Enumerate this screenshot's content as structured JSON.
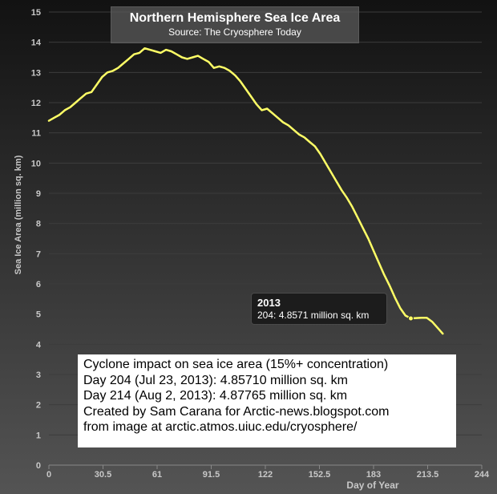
{
  "title": "Northern Hemisphere Sea Ice Area",
  "subtitle": "Source: The Cryosphere Today",
  "tooltip": {
    "series": "2013",
    "text": "204: 4.8571 million sq. km"
  },
  "annotation": {
    "lines": [
      "Cyclone impact on sea ice area (15%+ concentration)",
      "Day 204 (Jul 23, 2013): 4.85710 million sq. km",
      "Day 214 (Aug 2, 2013): 4.87765 million sq. km",
      "Created by Sam Carana for Arctic-news.blogspot.com",
      "from image at  arctic.atmos.uiuc.edu/cryosphere/"
    ]
  },
  "colors": {
    "background_top": "#121212",
    "background_bottom": "#545454",
    "grid": "#3c3c3c",
    "axis_text": "#c8c8c8",
    "line": "#ffff66"
  },
  "chart_data": {
    "type": "line",
    "xlabel": "Day of Year",
    "ylabel": "Sea Ice Area (million sq. km)",
    "xlim": [
      0,
      244
    ],
    "ylim": [
      0,
      15
    ],
    "xticks": [
      "0",
      "30.5",
      "61",
      "91.5",
      "122",
      "152.5",
      "183",
      "213.5",
      "244"
    ],
    "yticks": [
      "0",
      "1",
      "2",
      "3",
      "4",
      "5",
      "6",
      "7",
      "8",
      "9",
      "10",
      "11",
      "12",
      "13",
      "14",
      "15"
    ],
    "grid": true,
    "series": [
      {
        "name": "2013",
        "x": [
          0,
          3,
          6,
          9,
          12,
          15,
          18,
          21,
          24,
          27,
          30,
          33,
          36,
          39,
          42,
          45,
          48,
          51,
          54,
          57,
          60,
          63,
          66,
          69,
          72,
          75,
          78,
          81,
          84,
          87,
          90,
          93,
          96,
          99,
          102,
          105,
          108,
          111,
          114,
          117,
          120,
          123,
          126,
          129,
          132,
          135,
          138,
          141,
          144,
          147,
          150,
          153,
          156,
          159,
          162,
          165,
          168,
          171,
          174,
          177,
          180,
          183,
          186,
          189,
          192,
          195,
          198,
          201,
          204,
          207,
          210,
          213,
          216,
          219,
          222
        ],
        "y": [
          11.4,
          11.5,
          11.6,
          11.75,
          11.85,
          12.0,
          12.15,
          12.3,
          12.35,
          12.6,
          12.85,
          13.0,
          13.05,
          13.15,
          13.3,
          13.45,
          13.6,
          13.65,
          13.8,
          13.75,
          13.7,
          13.65,
          13.75,
          13.7,
          13.6,
          13.5,
          13.45,
          13.5,
          13.55,
          13.45,
          13.35,
          13.15,
          13.2,
          13.15,
          13.05,
          12.9,
          12.7,
          12.45,
          12.2,
          11.95,
          11.75,
          11.8,
          11.65,
          11.5,
          11.35,
          11.25,
          11.1,
          10.95,
          10.85,
          10.7,
          10.55,
          10.3,
          10.0,
          9.7,
          9.4,
          9.1,
          8.85,
          8.55,
          8.2,
          7.85,
          7.5,
          7.1,
          6.7,
          6.3,
          5.95,
          5.55,
          5.2,
          4.95,
          4.8571,
          4.87,
          4.88,
          4.87765,
          4.75,
          4.55,
          4.35
        ]
      }
    ]
  }
}
